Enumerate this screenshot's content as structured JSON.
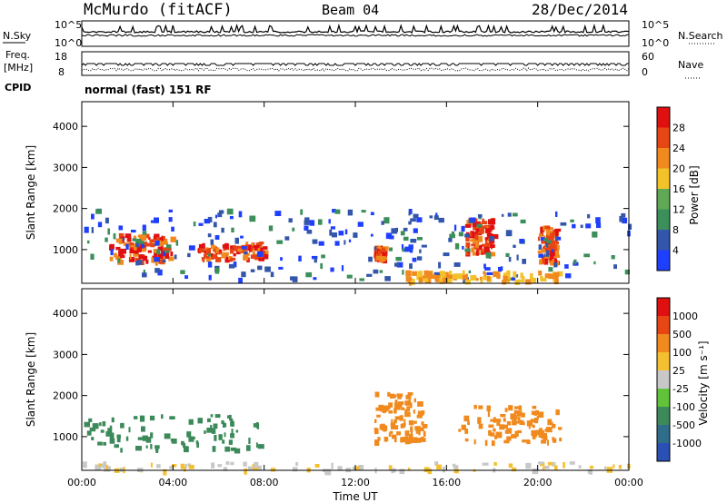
{
  "header": {
    "station": "McMurdo (fitACF)",
    "beam": "Beam 04",
    "date": "28/Dec/2014"
  },
  "strip": {
    "nsky_label": "N.Sky",
    "nsearch_label": "N.Search",
    "nsky_ticks": [
      "10^5",
      "10^0"
    ],
    "nsearch_ticks": [
      "10^5",
      "10^0"
    ],
    "freq_label": "Freq.",
    "freq_unit": "[MHz]",
    "freq_ticks": [
      "18",
      "8"
    ],
    "nave_label": "Nave",
    "nave_ticks": [
      "60",
      "0"
    ],
    "cpid_label": "CPID",
    "cpid_text": "normal (fast) 151 RF"
  },
  "chart_data": [
    {
      "type": "heatmap",
      "panel": "power",
      "ylabel": "Slant Range [km]",
      "ylim": [
        180,
        4600
      ],
      "yticks": [
        1000,
        2000,
        3000,
        4000
      ],
      "colorbar": {
        "label": "Power [dB]",
        "ticks": [
          "4",
          "8",
          "12",
          "16",
          "20",
          "24",
          "28"
        ],
        "colors": [
          "#1f3fff",
          "#3355aa",
          "#3c8f5a",
          "#5fa856",
          "#f2c229",
          "#f08a1e",
          "#e84514",
          "#e01010"
        ]
      },
      "regions": [
        {
          "t0": 1.2,
          "t1": 4.0,
          "r0": 700,
          "r1": 1400,
          "level": "high"
        },
        {
          "t0": 5.0,
          "t1": 8.0,
          "r0": 800,
          "r1": 1200,
          "level": "high"
        },
        {
          "t0": 12.8,
          "t1": 13.2,
          "r0": 800,
          "r1": 1100,
          "level": "high"
        },
        {
          "t0": 16.8,
          "t1": 18.0,
          "r0": 900,
          "r1": 1800,
          "level": "high"
        },
        {
          "t0": 20.0,
          "t1": 20.8,
          "r0": 700,
          "r1": 1600,
          "level": "high"
        },
        {
          "t0": 0.0,
          "t1": 24.0,
          "r0": 300,
          "r1": 2000,
          "level": "low"
        },
        {
          "t0": 14.0,
          "t1": 21.0,
          "r0": 250,
          "r1": 500,
          "level": "mid"
        }
      ]
    },
    {
      "type": "heatmap",
      "panel": "velocity",
      "xlabel": "Time UT",
      "ylabel": "Slant Range [km]",
      "ylim": [
        180,
        4600
      ],
      "yticks": [
        1000,
        2000,
        3000,
        4000
      ],
      "xticks": [
        "00:00",
        "04:00",
        "08:00",
        "12:00",
        "16:00",
        "20:00",
        "00:00"
      ],
      "colorbar": {
        "label": "Velocity [m s⁻¹]",
        "ticks": [
          "1000",
          "500",
          "100",
          "25",
          "-25",
          "-100",
          "-500",
          "-1000"
        ],
        "colors": [
          "#2a4fb5",
          "#2f6e8a",
          "#3c8a5a",
          "#62c23a",
          "#c8c8c8",
          "#f5c030",
          "#f08a1e",
          "#e84514",
          "#e01010"
        ]
      },
      "regions": [
        {
          "t0": 0.0,
          "t1": 8.0,
          "r0": 700,
          "r1": 1600,
          "level": "toward_slow"
        },
        {
          "t0": 12.8,
          "t1": 15.0,
          "r0": 900,
          "r1": 2100,
          "level": "away"
        },
        {
          "t0": 16.5,
          "t1": 21.0,
          "r0": 900,
          "r1": 1800,
          "level": "away"
        },
        {
          "t0": 0.0,
          "t1": 24.0,
          "r0": 200,
          "r1": 400,
          "level": "ground"
        }
      ]
    }
  ]
}
